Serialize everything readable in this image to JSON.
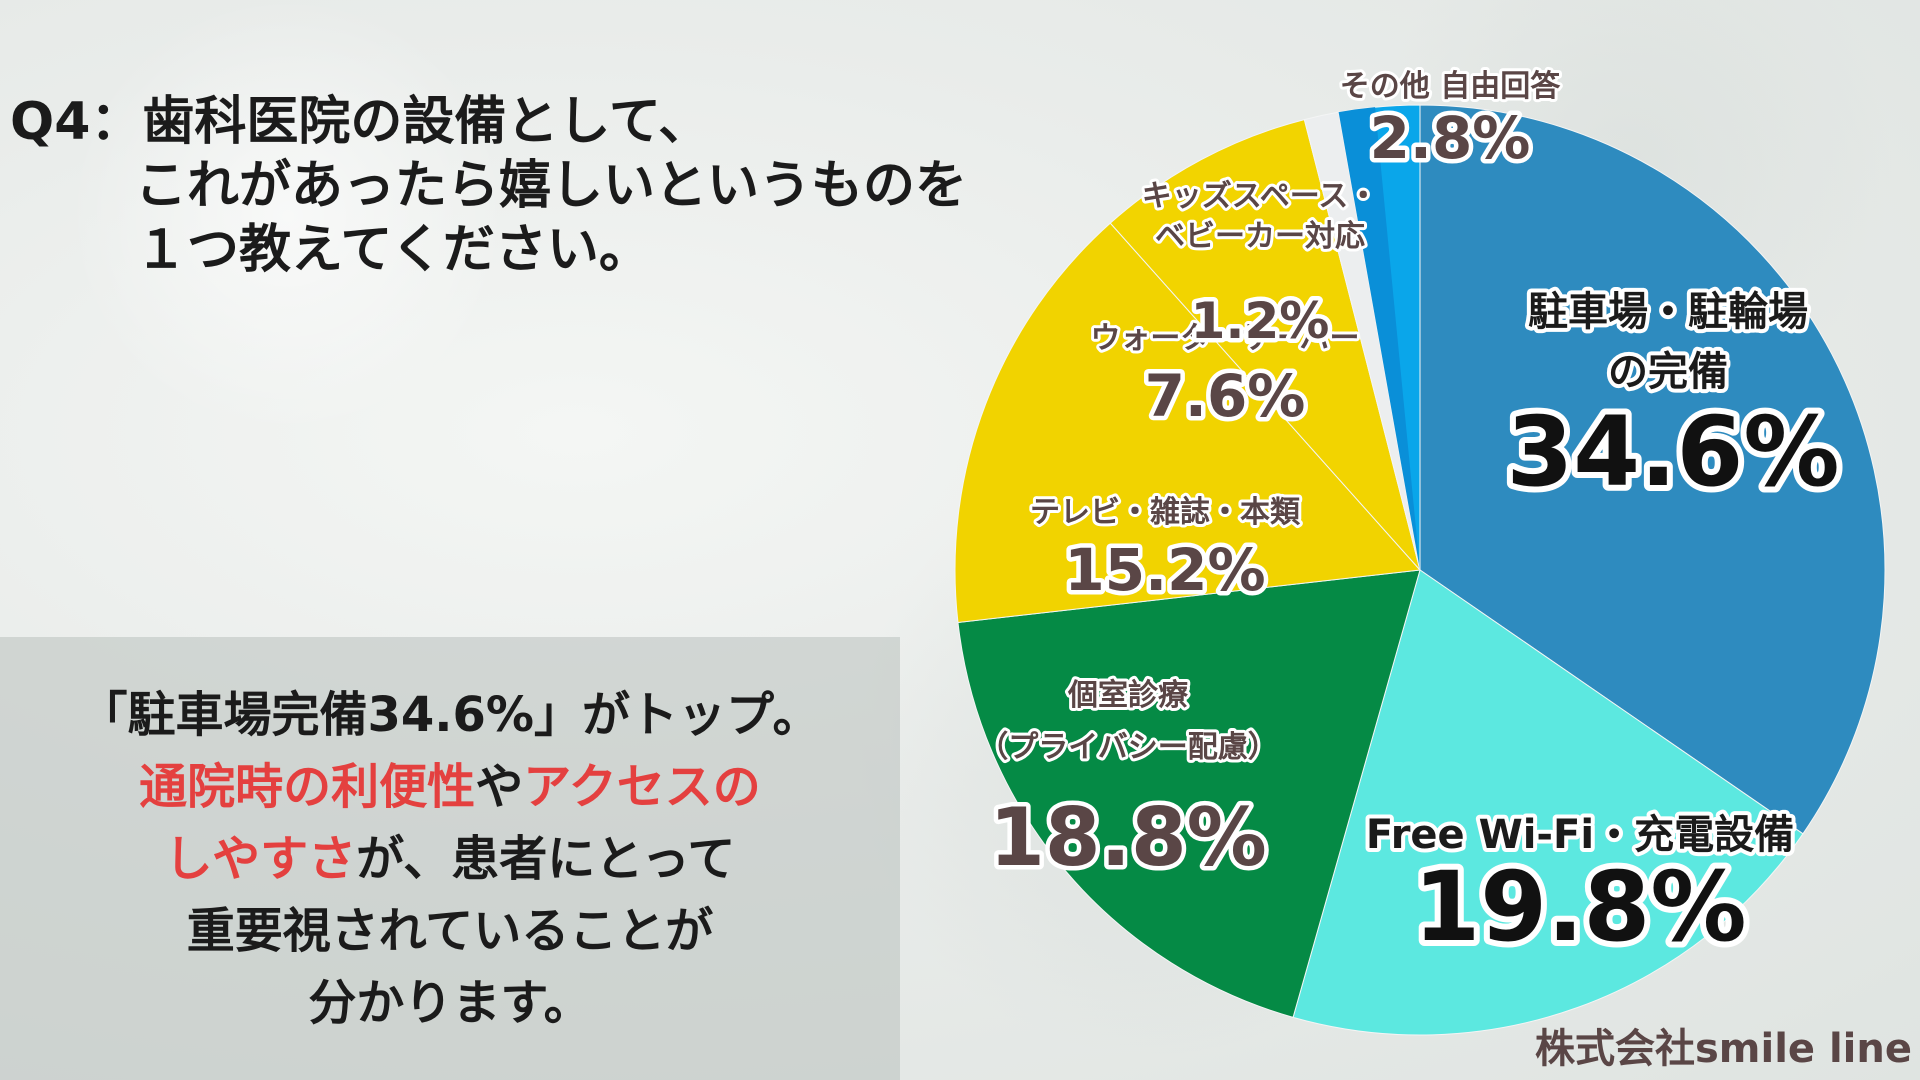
{
  "question": {
    "line1": "Q4：歯科医院の設備として、",
    "line2": "これがあったら嬉しいというものを",
    "line3": "１つ教えてください。"
  },
  "summary": {
    "line1": "「駐車場完備34.6%」がトップ。",
    "line2_hl1": "通院時の利便性",
    "line2_mid": "や",
    "line2_hl2": "アクセスの",
    "line3_hl": "しやすさ",
    "line3_rest": "が、患者にとって",
    "line4": "重要視されていることが",
    "line5": "分かります。"
  },
  "company": "株式会社smile line",
  "colors": {
    "highlight": "#e4403f",
    "parking": "#2e8bbf",
    "wifi": "#5ce8e0",
    "private": "#058a45",
    "tv": "#f1d300",
    "water": "#f2d400",
    "kids": "#eceeef",
    "other_a": "#0a8fd8",
    "other_b": "#0aa6ea"
  },
  "chart_data": {
    "type": "pie",
    "start_angle_deg": 0,
    "direction": "clockwise",
    "slices": [
      {
        "key": "parking",
        "name_lines": [
          "駐車場・駐輪場",
          "の完備"
        ],
        "value": 34.6,
        "label": "34.6%",
        "color": "#2e8bbf"
      },
      {
        "key": "wifi",
        "name_lines": [
          "Free Wi-Fi・充電設備"
        ],
        "value": 19.8,
        "label": "19.8%",
        "color": "#5ce8e0"
      },
      {
        "key": "private",
        "name_lines": [
          "個室診療",
          "（プライバシー配慮）"
        ],
        "value": 18.8,
        "label": "18.8%",
        "color": "#058a45"
      },
      {
        "key": "tv",
        "name_lines": [
          "テレビ・雑誌・本類"
        ],
        "value": 15.2,
        "label": "15.2%",
        "color": "#f1d300"
      },
      {
        "key": "water",
        "name_lines": [
          "ウォーターサーバー"
        ],
        "value": 7.6,
        "label": "7.6%",
        "color": "#f2d400"
      },
      {
        "key": "kids",
        "name_lines": [
          "キッズスペース・",
          "ベビーカー対応"
        ],
        "value": 1.2,
        "label": "1.2%",
        "color": "#eceeef"
      },
      {
        "key": "other",
        "name_lines": [
          "その他 自由回答"
        ],
        "value": 2.8,
        "label": "2.8%",
        "color": "#0aa6ea"
      }
    ]
  }
}
